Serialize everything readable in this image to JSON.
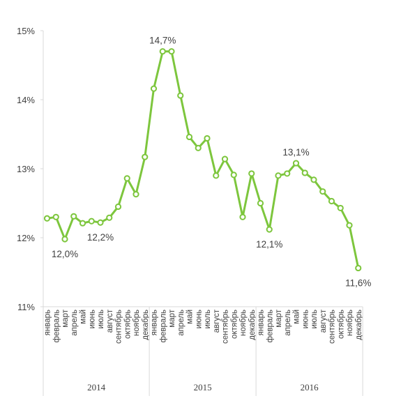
{
  "chart_data": {
    "type": "line",
    "title": "",
    "xlabel": "",
    "ylabel": "",
    "ylim": [
      11,
      15
    ],
    "y_ticks": [
      "11%",
      "12%",
      "13%",
      "14%",
      "15%"
    ],
    "categories": [
      "январь",
      "февраль",
      "март",
      "апрель",
      "май",
      "июнь",
      "июль",
      "август",
      "сентябрь",
      "октябрь",
      "ноябрь",
      "декабрь",
      "январь",
      "февраль",
      "март",
      "апрель",
      "май",
      "июнь",
      "июль",
      "август",
      "сентябрь",
      "октябрь",
      "ноябрь",
      "декабрь",
      "январь",
      "февраль",
      "март",
      "апрель",
      "май",
      "июнь",
      "июль",
      "август",
      "сентябрь",
      "октябрь",
      "ноябрь",
      "декабрь"
    ],
    "groups": [
      {
        "label": "2014",
        "start": 0,
        "end": 11
      },
      {
        "label": "2015",
        "start": 12,
        "end": 23
      },
      {
        "label": "2016",
        "start": 24,
        "end": 35
      }
    ],
    "series": [
      {
        "color": "#7dc63d",
        "values": [
          12.28,
          12.3,
          11.98,
          12.31,
          12.21,
          12.24,
          12.22,
          12.29,
          12.45,
          12.86,
          12.63,
          13.17,
          14.16,
          14.7,
          14.7,
          14.06,
          13.46,
          13.3,
          13.44,
          12.9,
          13.14,
          12.91,
          12.3,
          12.93,
          12.5,
          12.12,
          12.9,
          12.93,
          13.08,
          12.94,
          12.84,
          12.67,
          12.53,
          12.43,
          12.18,
          11.56
        ]
      }
    ],
    "data_labels": [
      {
        "index": 2,
        "text": "12,0%",
        "position": "below"
      },
      {
        "index": 6,
        "text": "12,2%",
        "position": "below"
      },
      {
        "index": 13,
        "text": "14,7%",
        "position": "above"
      },
      {
        "index": 25,
        "text": "12,1%",
        "position": "below"
      },
      {
        "index": 28,
        "text": "13,1%",
        "position": "above"
      },
      {
        "index": 35,
        "text": "11,6%",
        "position": "below"
      }
    ],
    "grid": false,
    "legend": "none"
  }
}
